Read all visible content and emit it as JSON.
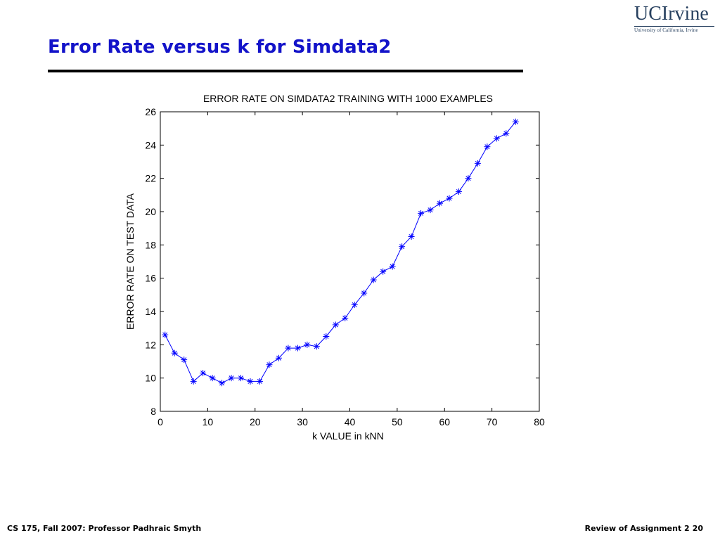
{
  "slide": {
    "title": "Error Rate versus k for Simdata2",
    "footer_left": "CS 175, Fall 2007: Professor Padhraic Smyth",
    "footer_right": "Review of Assignment 2",
    "page_number": "20"
  },
  "logo": {
    "name": "UCIrvine",
    "subtitle": "University of California, Irvine",
    "color": "#27405f"
  },
  "colors": {
    "title": "#1313c9",
    "series": "#0000ff"
  },
  "chart_data": {
    "type": "line",
    "title": "ERROR RATE ON SIMDATA2 TRAINING WITH 1000 EXAMPLES",
    "xlabel": "k VALUE in kNN",
    "ylabel": "ERROR RATE ON TEST DATA",
    "xlim": [
      0,
      80
    ],
    "ylim": [
      8,
      26
    ],
    "xticks": [
      0,
      10,
      20,
      30,
      40,
      50,
      60,
      70,
      80
    ],
    "yticks": [
      8,
      10,
      12,
      14,
      16,
      18,
      20,
      22,
      24,
      26
    ],
    "grid": false,
    "marker": "asterisk",
    "series": [
      {
        "x": [
          1,
          3,
          5,
          7,
          9,
          11,
          13,
          15,
          17,
          19,
          21,
          23,
          25,
          27,
          29,
          31,
          33,
          35,
          37,
          39,
          41,
          43,
          45,
          47,
          49,
          51,
          53,
          55,
          57,
          59,
          61,
          63,
          65,
          67,
          69,
          71,
          73,
          75
        ],
        "y": [
          12.6,
          11.5,
          11.1,
          9.8,
          10.3,
          10.0,
          9.7,
          10.0,
          10.0,
          9.8,
          9.8,
          10.8,
          11.2,
          11.8,
          11.8,
          12.0,
          11.9,
          12.5,
          13.2,
          13.6,
          14.4,
          15.1,
          15.9,
          16.4,
          16.7,
          17.9,
          18.5,
          19.9,
          20.1,
          20.5,
          20.8,
          21.2,
          22.0,
          22.9,
          23.9,
          24.4,
          24.7,
          25.4
        ]
      }
    ]
  }
}
